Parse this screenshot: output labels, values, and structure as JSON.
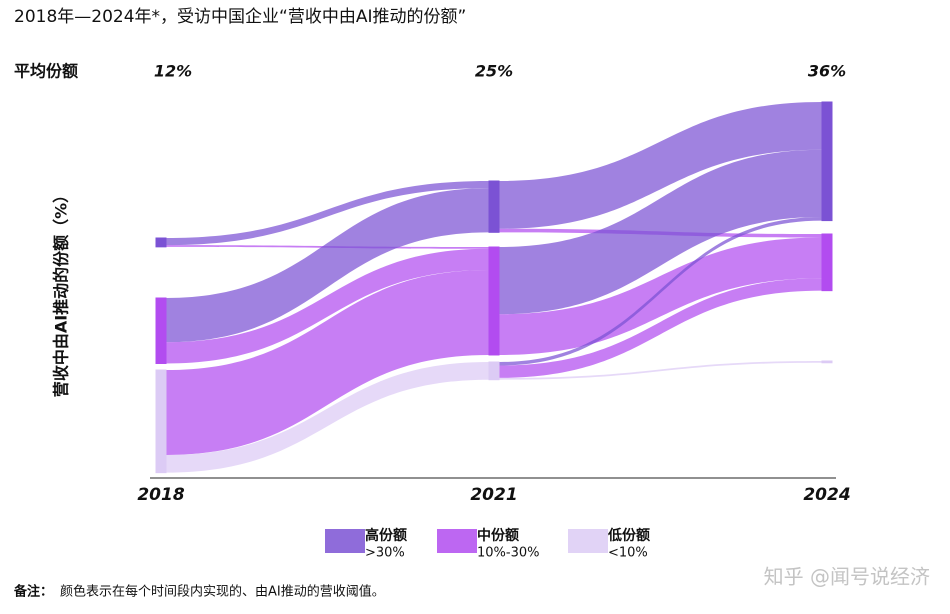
{
  "chart_data": {
    "type": "sankey",
    "title": "2018年—2024年*，受访中国企业“营收中由AI推动的份额”",
    "y_label": "营收中由AI推动的份额（%）",
    "stages": [
      "2018",
      "2021",
      "2024"
    ],
    "average_share": {
      "name": "平均份额",
      "values": [
        12,
        25,
        36
      ],
      "value_labels": [
        "12%",
        "25%",
        "36%"
      ]
    },
    "series": [
      {
        "name": "高份额",
        "range": ">30%",
        "color": "#7b52d4"
      },
      {
        "name": "中份额",
        "range": "10%-30%",
        "color": "#b24cf0"
      },
      {
        "name": "低份额",
        "range": "<10%",
        "color": "#dccbf5"
      }
    ],
    "flows": [
      [
        [
          4,
          1,
          0
        ],
        [
          25,
          12,
          0
        ],
        [
          0,
          48,
          10
        ]
      ],
      [
        [
          27,
          2,
          0
        ],
        [
          38,
          23,
          0
        ],
        [
          2,
          7,
          1
        ]
      ]
    ],
    "note": {
      "label": "备注：",
      "text": "颜色表示在每个时间段内实现的、由AI推动的营收阈值。"
    },
    "watermark": "知乎 @闻号说经济"
  }
}
